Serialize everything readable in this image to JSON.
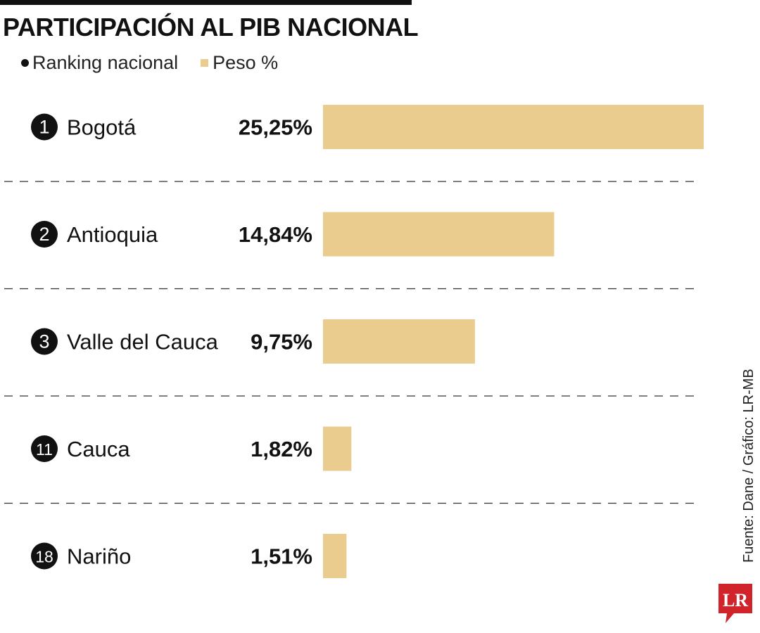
{
  "title": "PARTICIPACIÓN AL PIB NACIONAL",
  "legend": {
    "ranking_label": "Ranking nacional",
    "peso_label": "Peso %"
  },
  "source": "Fuente: Dane / Gráfico: LR-MB",
  "logo": "LR",
  "colors": {
    "bar": "#e9cc8e",
    "badge": "#111111",
    "logo": "#d0232a"
  },
  "chart_data": {
    "type": "bar",
    "orientation": "horizontal",
    "categories": [
      "Bogotá",
      "Antioquia",
      "Valle del Cauca",
      "Cauca",
      "Nariño"
    ],
    "ranks": [
      "1",
      "2",
      "3",
      "11",
      "18"
    ],
    "values": [
      25.25,
      14.84,
      9.75,
      1.82,
      1.51
    ],
    "value_labels": [
      "25,25%",
      "14,84%",
      "9,75%",
      "1,82%",
      "1,51%"
    ],
    "xlim": [
      0,
      25.25
    ]
  }
}
